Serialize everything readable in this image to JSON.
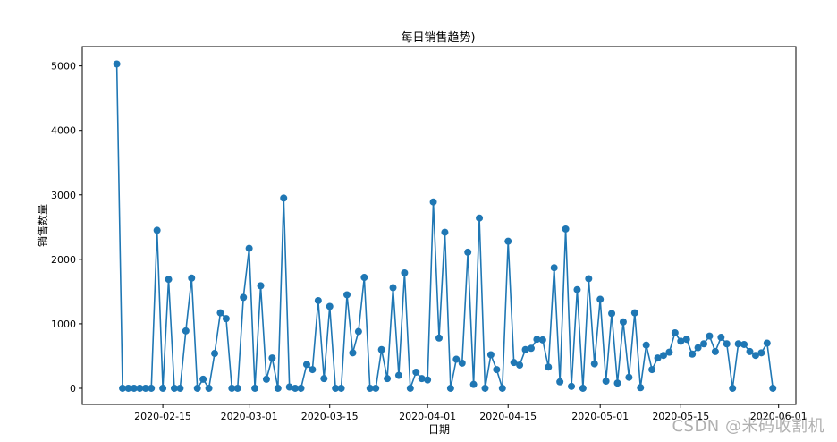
{
  "chart_data": {
    "type": "line",
    "title": "每日销售趋势)",
    "xlabel": "日期",
    "ylabel": "销售数量",
    "x_start": "2020-02-07",
    "x_end": "2020-05-31",
    "xlim": [
      "2020-02-01",
      "2020-06-04"
    ],
    "ylim": [
      -250,
      5300
    ],
    "x_ticks": [
      "2020-02-15",
      "2020-03-01",
      "2020-03-15",
      "2020-04-01",
      "2020-04-15",
      "2020-05-01",
      "2020-05-15",
      "2020-06-01"
    ],
    "y_ticks": [
      0,
      1000,
      2000,
      3000,
      4000,
      5000
    ],
    "grid": false,
    "marker": "circle",
    "series": [
      {
        "color": "#1f77b4",
        "values": [
          5030,
          0,
          0,
          0,
          0,
          0,
          0,
          2450,
          0,
          1690,
          0,
          0,
          890,
          1710,
          0,
          140,
          0,
          540,
          1170,
          1080,
          0,
          0,
          1410,
          2170,
          0,
          1590,
          140,
          470,
          0,
          2950,
          20,
          0,
          0,
          370,
          290,
          1360,
          150,
          1270,
          0,
          0,
          1450,
          550,
          880,
          1720,
          0,
          0,
          600,
          150,
          1560,
          200,
          1790,
          0,
          250,
          150,
          130,
          2890,
          780,
          2420,
          0,
          450,
          390,
          2110,
          60,
          2640,
          0,
          520,
          290,
          0,
          2280,
          400,
          360,
          600,
          620,
          760,
          750,
          330,
          1870,
          100,
          2470,
          30,
          1530,
          0,
          1700,
          380,
          1380,
          110,
          1160,
          80,
          1030,
          170,
          1170,
          10,
          670,
          290,
          470,
          510,
          560,
          860,
          730,
          760,
          530,
          630,
          690,
          810,
          570,
          790,
          690,
          0,
          690,
          680,
          570,
          510,
          550,
          700,
          0
        ]
      }
    ]
  },
  "watermark": "CSDN @米码收割机"
}
